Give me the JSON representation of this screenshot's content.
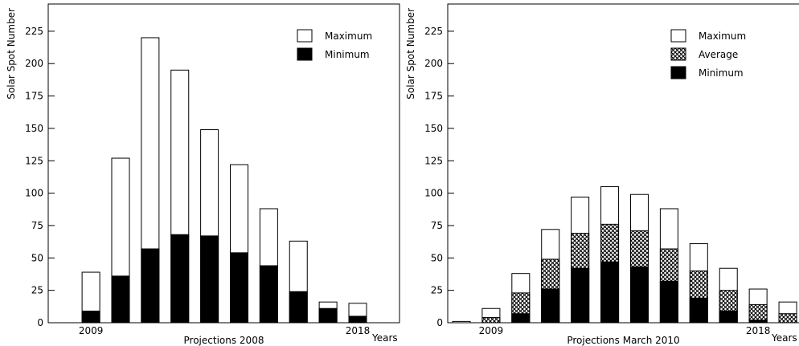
{
  "chart_data": [
    {
      "type": "bar",
      "y_label": "Solar Spot Number",
      "x_label": "Projections 2008",
      "x_unit_label": "Years",
      "x": [
        2009,
        2010,
        2011,
        2012,
        2013,
        2014,
        2015,
        2016,
        2017,
        2018
      ],
      "series": [
        {
          "name": "Maximum",
          "color": "#ffffff",
          "values": [
            39,
            127,
            220,
            195,
            149,
            122,
            88,
            63,
            16,
            15
          ]
        },
        {
          "name": "Minimum",
          "color": "#000000",
          "values": [
            9,
            36,
            57,
            68,
            67,
            54,
            44,
            24,
            11,
            5
          ]
        }
      ],
      "xlim": [
        2007.56,
        2019.41
      ],
      "xticks": [
        2009,
        2018
      ],
      "ylim": [
        0,
        246
      ],
      "yticks": [
        0,
        25,
        50,
        75,
        100,
        125,
        150,
        175,
        200,
        225
      ]
    },
    {
      "type": "bar",
      "y_label": "Solar Spot Number",
      "x_label": "Projections March 2010",
      "x_unit_label": "Years",
      "x": [
        2008,
        2009,
        2010,
        2011,
        2012,
        2013,
        2014,
        2015,
        2016,
        2017,
        2018,
        2019
      ],
      "series": [
        {
          "name": "Maximum",
          "color": "#ffffff",
          "values": [
            1,
            11,
            38,
            72,
            97,
            105,
            99,
            88,
            61,
            42,
            26,
            16
          ]
        },
        {
          "name": "Average",
          "color": "#000000",
          "pattern": "crosshatch",
          "values": [
            0,
            4,
            23,
            49,
            69,
            76,
            71,
            57,
            40,
            25,
            14,
            7
          ]
        },
        {
          "name": "Minimum",
          "color": "#000000",
          "values": [
            0,
            0,
            7,
            26,
            42,
            47,
            43,
            32,
            19,
            9,
            2,
            0
          ]
        }
      ],
      "xlim": [
        2007.54,
        2019.54
      ],
      "xticks": [
        2009,
        2018
      ],
      "ylim": [
        0,
        246
      ],
      "yticks": [
        0,
        25,
        50,
        75,
        100,
        125,
        150,
        175,
        200,
        225
      ]
    }
  ]
}
